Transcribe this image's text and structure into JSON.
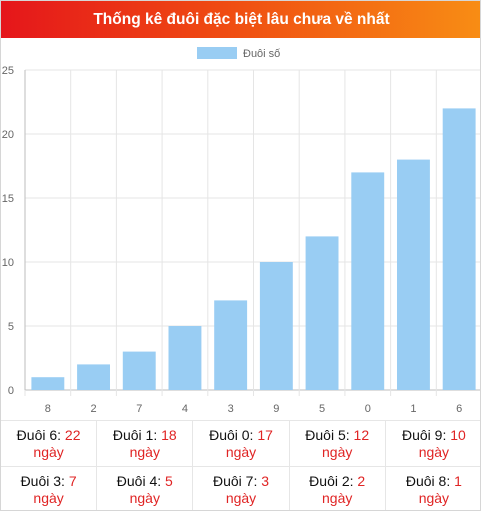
{
  "header": {
    "title": "Thống kê đuôi đặc biệt lâu chưa về nhất"
  },
  "colors": {
    "bar": "#99cdf3",
    "header_start": "#e5161b",
    "header_end": "#f88d14",
    "highlight": "#e02424"
  },
  "chart_data": {
    "type": "bar",
    "title": "",
    "xlabel": "",
    "ylabel": "",
    "categories": [
      "8",
      "2",
      "7",
      "4",
      "3",
      "9",
      "5",
      "0",
      "1",
      "6"
    ],
    "series": [
      {
        "name": "Đuôi số",
        "values": [
          1,
          2,
          3,
          5,
          7,
          10,
          12,
          17,
          18,
          22
        ]
      }
    ],
    "ylim": [
      0,
      25
    ],
    "yticks": [
      "0",
      "5",
      "10",
      "15",
      "20",
      "25"
    ],
    "grid": true,
    "legend": "top-center"
  },
  "stats": {
    "unit": "ngày",
    "items": [
      {
        "label": "Đuôi 6:",
        "value": "22"
      },
      {
        "label": "Đuôi 1:",
        "value": "18"
      },
      {
        "label": "Đuôi 0:",
        "value": "17"
      },
      {
        "label": "Đuôi 5:",
        "value": "12"
      },
      {
        "label": "Đuôi 9:",
        "value": "10"
      },
      {
        "label": "Đuôi 3:",
        "value": "7"
      },
      {
        "label": "Đuôi 4:",
        "value": "5"
      },
      {
        "label": "Đuôi 7:",
        "value": "3"
      },
      {
        "label": "Đuôi 2:",
        "value": "2"
      },
      {
        "label": "Đuôi 8:",
        "value": "1"
      }
    ]
  }
}
